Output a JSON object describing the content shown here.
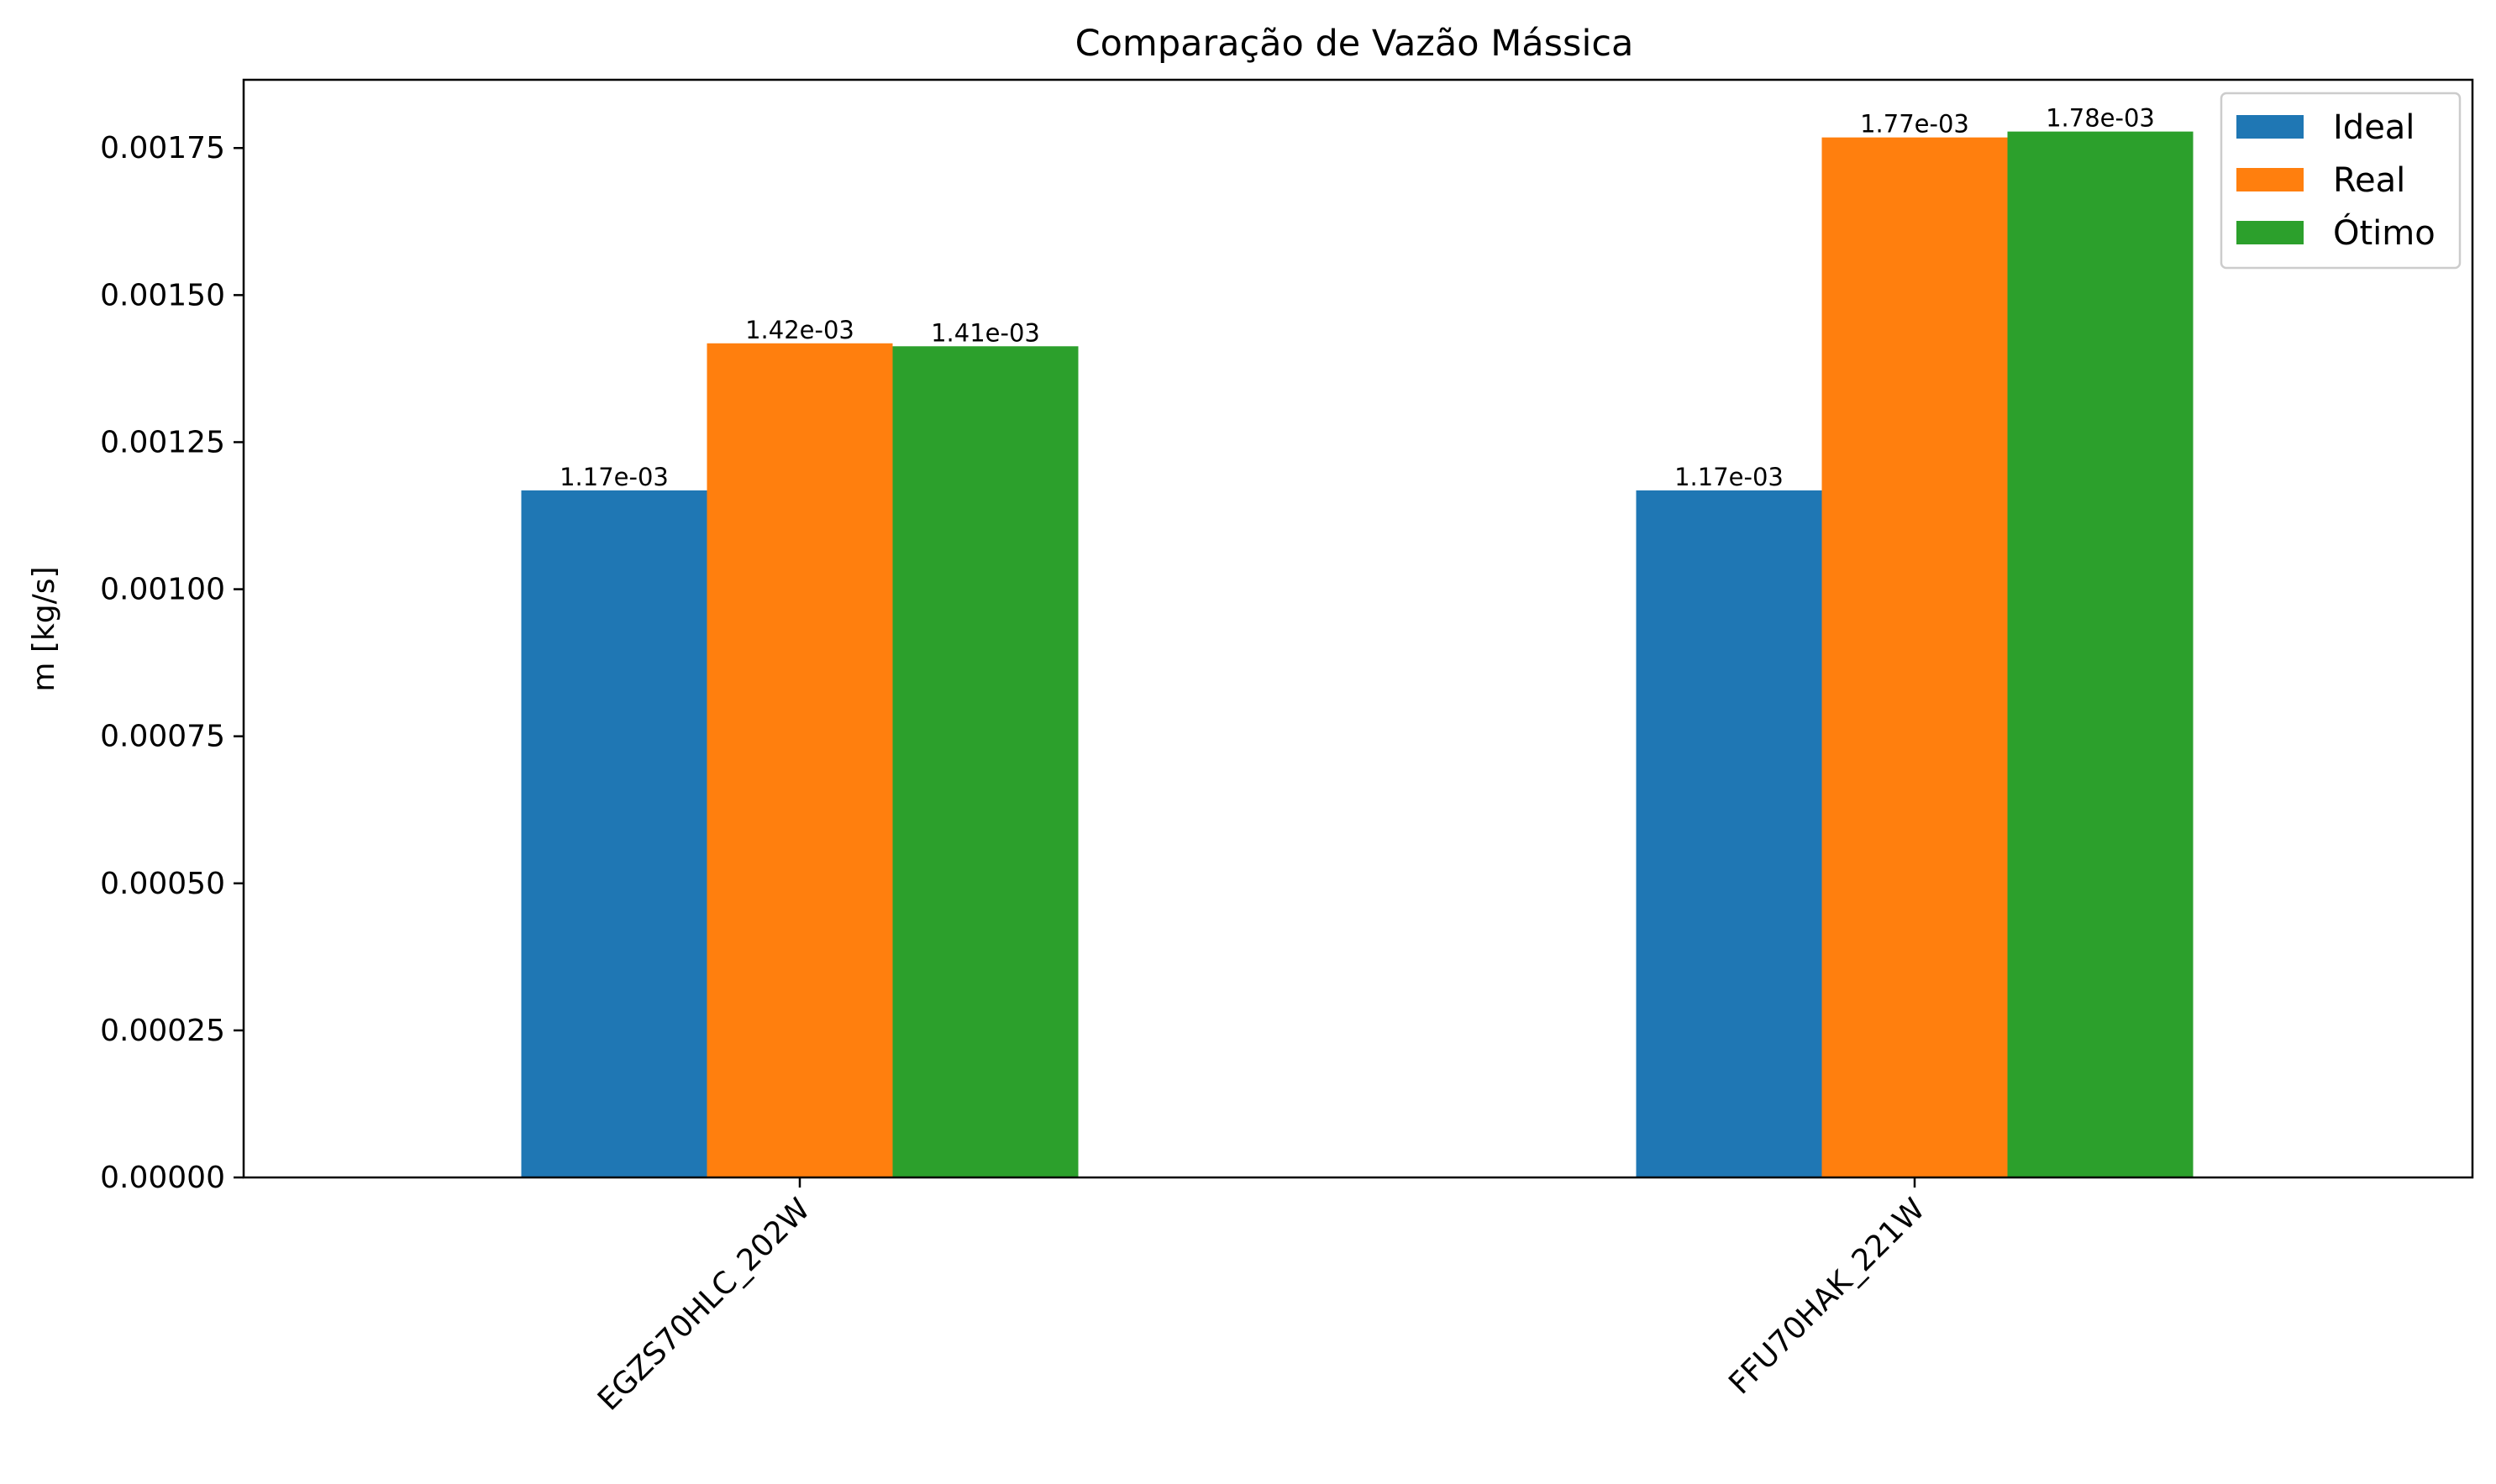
{
  "chart_data": {
    "type": "bar",
    "title": "Comparação de Vazão Mássica",
    "xlabel": "",
    "ylabel": "m [kg/s]",
    "ylim": [
      0,
      0.001866
    ],
    "yticks": [
      "0.00000",
      "0.00025",
      "0.00050",
      "0.00075",
      "0.00100",
      "0.00125",
      "0.00150",
      "0.00175"
    ],
    "categories": [
      "EGZS70HLC_202W",
      "FFU70HAK_221W"
    ],
    "series": [
      {
        "name": "Ideal",
        "color": "#1f77b4",
        "values": [
          0.001168,
          0.001168
        ],
        "labels": [
          "1.17e-03",
          "1.17e-03"
        ]
      },
      {
        "name": "Real",
        "color": "#ff7f0e",
        "values": [
          0.001418,
          0.001768
        ],
        "labels": [
          "1.42e-03",
          "1.77e-03"
        ]
      },
      {
        "name": "Ótimo",
        "color": "#2ca02c",
        "values": [
          0.001413,
          0.001778
        ],
        "labels": [
          "1.41e-03",
          "1.78e-03"
        ]
      }
    ],
    "grid": false,
    "legend_position": "top-right",
    "xtick_rotation": 45
  }
}
